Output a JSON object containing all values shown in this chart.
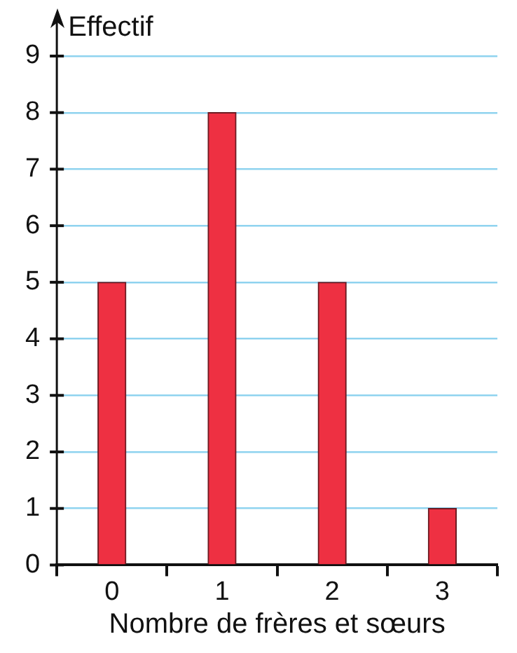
{
  "chart_data": {
    "type": "bar",
    "xlabel": "Nombre de frères et sœurs",
    "ylabel": "Effectif",
    "categories": [
      "0",
      "1",
      "2",
      "3"
    ],
    "values": [
      5,
      8,
      5,
      1
    ],
    "color": "#ee3042",
    "ylim": [
      0,
      9
    ],
    "yticks": [
      0,
      1,
      2,
      3,
      4,
      5,
      6,
      7,
      8,
      9
    ],
    "grid": "y",
    "legend": false
  }
}
